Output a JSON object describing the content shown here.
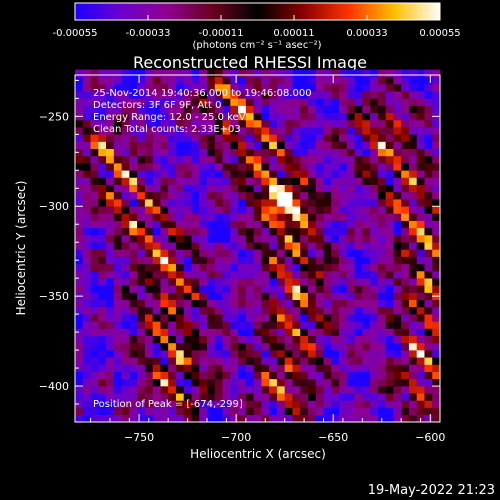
{
  "colorbar": {
    "tick_labels": [
      "-0.00055",
      "-0.00033",
      "-0.00011",
      "0.00011",
      "0.00033",
      "0.00055"
    ],
    "unit_label": "(photons cm⁻² s⁻¹ asec⁻²)",
    "range": [
      -0.00055,
      0.00055
    ],
    "colors": [
      "#1b00ff",
      "#6a00cc",
      "#8f008f",
      "#6a0020",
      "#000000",
      "#8a0000",
      "#ff3300",
      "#ffbf00",
      "#ffffff"
    ]
  },
  "overlay": {
    "time_range": "25-Nov-2014 19:40:36.000 to 19:46:08.000",
    "detectors": "Detectors: 3F 6F 9F, Att 0",
    "energy": "Energy Range: 12.0 - 25.0 keV",
    "clean": "Clean     Total counts: 2.33E+03",
    "peak": "Position of Peak = [-674,-299]"
  },
  "footer": {
    "date": "19-May-2022 21:23"
  },
  "chart_data": {
    "type": "heatmap",
    "title": "Reconstructed RHESSI Image",
    "xlabel": "Heliocentric X (arcsec)",
    "ylabel": "Heliocentric Y (arcsec)",
    "xlim": [
      -783,
      -595
    ],
    "ylim": [
      -420,
      -227
    ],
    "xticks": [
      -750,
      -700,
      -650,
      -600
    ],
    "yticks": [
      -250,
      -300,
      -350,
      -400
    ],
    "xtick_labels": [
      "−750",
      "−700",
      "−650",
      "−600"
    ],
    "ytick_labels": [
      "−250",
      "−300",
      "−350",
      "−400"
    ],
    "cell_size_arcsec": 4,
    "bright_ridges": [
      {
        "x": [
          -770,
          -752,
          -735,
          -730
        ],
        "y": [
          -270,
          -300,
          -335,
          -400
        ]
      },
      {
        "x": [
          -705,
          -690,
          -674,
          -668,
          -675
        ],
        "y": [
          -240,
          -270,
          -299,
          -345,
          -400
        ]
      },
      {
        "x": [
          -625,
          -608,
          -600,
          -603
        ],
        "y": [
          -255,
          -300,
          -340,
          -400
        ]
      }
    ],
    "peak": {
      "x": -674,
      "y": -299
    }
  }
}
